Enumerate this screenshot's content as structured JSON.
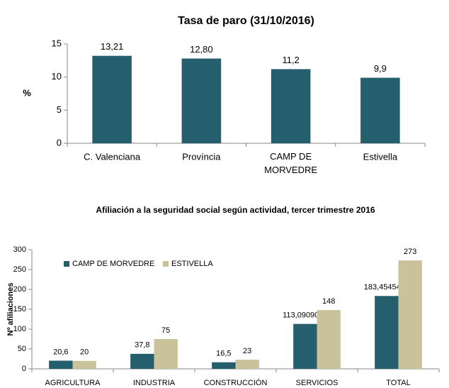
{
  "chart_data": [
    {
      "type": "bar",
      "title": "Tasa de paro (31/10/2016)",
      "y_label": "%",
      "categories": [
        "C. Valenciana",
        "Província",
        "CAMP DE MORVEDRE",
        "Estivella"
      ],
      "values": [
        13.21,
        12.8,
        11.2,
        9.9
      ],
      "value_labels": [
        "13,21",
        "12,80",
        "11,2",
        "9,9"
      ],
      "color": "#255e6c",
      "ylim": [
        0,
        15
      ],
      "yticks": [
        0,
        5,
        10,
        15
      ]
    },
    {
      "type": "grouped_bar",
      "title": "Afiliación a la seguridad social según actividad, tercer trimestre 2016",
      "y_label": "Nº afiliaciones",
      "categories": [
        "AGRICULTURA",
        "INDUSTRIA",
        "CONSTRUCCIÓN",
        "SERVICIOS",
        "TOTAL"
      ],
      "series": [
        {
          "name": "CAMP DE MORVEDRE",
          "color": "#255e6c",
          "values": [
            20.6,
            37.8,
            16.5,
            113.0909091,
            183.4545455
          ],
          "value_labels": [
            "20,6",
            "37,8",
            "16,5",
            "113,0909091",
            "183,4545455"
          ]
        },
        {
          "name": "ESTIVELLA",
          "color": "#c9c29a",
          "values": [
            20,
            75,
            23,
            148,
            273
          ],
          "value_labels": [
            "20",
            "75",
            "23",
            "148",
            "273"
          ]
        }
      ],
      "ylim": [
        0,
        300
      ],
      "yticks": [
        0,
        50,
        100,
        150,
        200,
        250,
        300
      ],
      "legend": "top-left"
    }
  ]
}
